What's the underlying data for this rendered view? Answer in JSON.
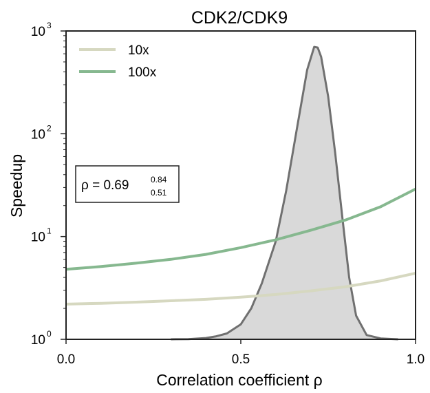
{
  "chart_data": {
    "type": "line",
    "title": "CDK2/CDK9",
    "xlabel": "Correlation coefficient ρ",
    "ylabel": "Speedup",
    "xlim": [
      0.0,
      1.0
    ],
    "ylim": [
      1,
      1000
    ],
    "yscale": "log",
    "x_ticks": [
      "0.0",
      "0.5",
      "1.0"
    ],
    "y_ticks": [
      {
        "base": "10",
        "exp": "0"
      },
      {
        "base": "10",
        "exp": "1"
      },
      {
        "base": "10",
        "exp": "2"
      },
      {
        "base": "10",
        "exp": "3"
      }
    ],
    "legend_position": "top-left",
    "grid": false,
    "series": [
      {
        "name": "10x",
        "color": "#d6d8c0",
        "x": [
          0.0,
          0.1,
          0.2,
          0.3,
          0.4,
          0.5,
          0.6,
          0.7,
          0.8,
          0.9,
          1.0
        ],
        "y": [
          2.2,
          2.24,
          2.3,
          2.37,
          2.45,
          2.57,
          2.73,
          2.96,
          3.25,
          3.7,
          4.4
        ]
      },
      {
        "name": "100x",
        "color": "#86b88f",
        "x": [
          0.0,
          0.1,
          0.2,
          0.3,
          0.4,
          0.5,
          0.6,
          0.7,
          0.8,
          0.9,
          1.0
        ],
        "y": [
          4.8,
          5.1,
          5.5,
          6.0,
          6.7,
          7.8,
          9.3,
          11.5,
          14.5,
          19.5,
          29.0
        ]
      }
    ],
    "distribution": {
      "color": "#d9d9d9",
      "edge_color": "#707070",
      "x": [
        0.3,
        0.35,
        0.4,
        0.43,
        0.46,
        0.5,
        0.53,
        0.56,
        0.6,
        0.63,
        0.66,
        0.69,
        0.71,
        0.72,
        0.73,
        0.75,
        0.77,
        0.79,
        0.81,
        0.83,
        0.86,
        0.9,
        0.95
      ],
      "y": [
        1.0,
        1.005,
        1.03,
        1.07,
        1.14,
        1.4,
        2.0,
        3.5,
        9.0,
        28,
        110,
        420,
        700,
        690,
        560,
        230,
        65,
        16,
        4.0,
        1.7,
        1.1,
        1.02,
        1.0
      ]
    },
    "annotation": {
      "text": "ρ = 0.69",
      "sup": "0.84",
      "sub": "0.51"
    }
  }
}
